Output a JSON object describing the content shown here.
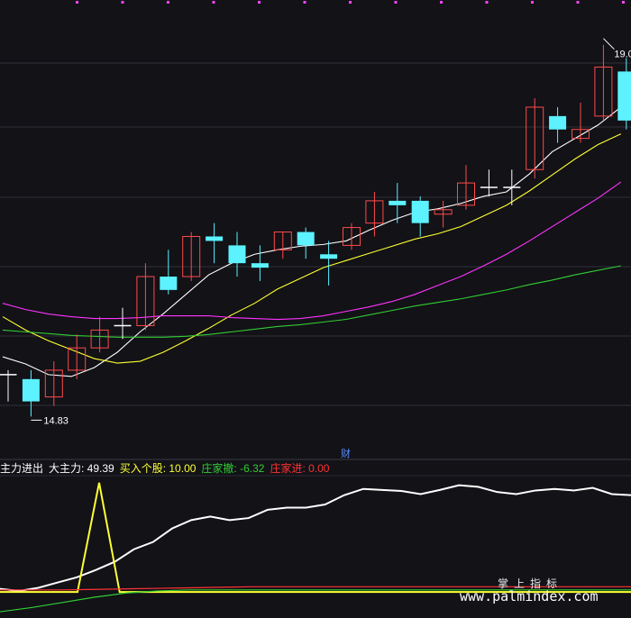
{
  "colors": {
    "background": "#121217",
    "up": "#ff4a4a",
    "down": "#5cf2ff",
    "ma_white": "#ffffff",
    "ma_yellow": "#ffff33",
    "ma_magenta": "#ff33ff",
    "ma_green": "#33cc33",
    "grid": "#30303a"
  },
  "chart_data": [
    {
      "type": "candlestick",
      "title": "",
      "annotations": {
        "low_label": "14.83",
        "high_label": "19.0"
      },
      "candles": [
        {
          "o": 15.3,
          "h": 15.35,
          "l": 15.0,
          "c": 15.3
        },
        {
          "o": 15.25,
          "h": 15.35,
          "l": 14.83,
          "c": 15.0
        },
        {
          "o": 15.05,
          "h": 15.45,
          "l": 14.95,
          "c": 15.35
        },
        {
          "o": 15.35,
          "h": 15.75,
          "l": 15.25,
          "c": 15.6
        },
        {
          "o": 15.6,
          "h": 15.95,
          "l": 15.55,
          "c": 15.8
        },
        {
          "o": 15.85,
          "h": 16.05,
          "l": 15.7,
          "c": 15.85
        },
        {
          "o": 15.85,
          "h": 16.55,
          "l": 15.8,
          "c": 16.4
        },
        {
          "o": 16.4,
          "h": 16.7,
          "l": 16.2,
          "c": 16.25
        },
        {
          "o": 16.4,
          "h": 16.9,
          "l": 16.35,
          "c": 16.85
        },
        {
          "o": 16.85,
          "h": 17.0,
          "l": 16.55,
          "c": 16.8
        },
        {
          "o": 16.75,
          "h": 16.9,
          "l": 16.4,
          "c": 16.55
        },
        {
          "o": 16.55,
          "h": 16.75,
          "l": 16.35,
          "c": 16.5
        },
        {
          "o": 16.7,
          "h": 16.9,
          "l": 16.6,
          "c": 16.9
        },
        {
          "o": 16.9,
          "h": 16.95,
          "l": 16.6,
          "c": 16.75
        },
        {
          "o": 16.65,
          "h": 16.8,
          "l": 16.3,
          "c": 16.6
        },
        {
          "o": 16.75,
          "h": 17.0,
          "l": 16.7,
          "c": 16.95
        },
        {
          "o": 17.0,
          "h": 17.35,
          "l": 16.85,
          "c": 17.25
        },
        {
          "o": 17.25,
          "h": 17.45,
          "l": 17.0,
          "c": 17.2
        },
        {
          "o": 17.25,
          "h": 17.3,
          "l": 16.85,
          "c": 17.0
        },
        {
          "o": 17.1,
          "h": 17.25,
          "l": 16.95,
          "c": 17.15
        },
        {
          "o": 17.2,
          "h": 17.65,
          "l": 17.15,
          "c": 17.45
        },
        {
          "o": 17.4,
          "h": 17.6,
          "l": 17.3,
          "c": 17.4
        },
        {
          "o": 17.4,
          "h": 17.6,
          "l": 17.2,
          "c": 17.4
        },
        {
          "o": 17.6,
          "h": 18.4,
          "l": 17.5,
          "c": 18.3
        },
        {
          "o": 18.2,
          "h": 18.3,
          "l": 17.9,
          "c": 18.05
        },
        {
          "o": 17.95,
          "h": 18.35,
          "l": 17.9,
          "c": 18.05
        },
        {
          "o": 18.2,
          "h": 19.0,
          "l": 18.15,
          "c": 18.75
        },
        {
          "o": 18.7,
          "h": 18.85,
          "l": 18.05,
          "c": 18.15
        }
      ],
      "ma": [
        {
          "color": "#ffffff",
          "values": [
            15.5,
            15.42,
            15.3,
            15.28,
            15.38,
            15.55,
            15.78,
            15.98,
            16.2,
            16.42,
            16.55,
            16.65,
            16.7,
            16.74,
            16.76,
            16.8,
            16.92,
            17.03,
            17.12,
            17.16,
            17.22,
            17.3,
            17.35,
            17.55,
            17.8,
            17.95,
            18.1,
            18.3
          ]
        },
        {
          "color": "#ffff33",
          "values": [
            15.95,
            15.8,
            15.68,
            15.58,
            15.48,
            15.43,
            15.45,
            15.55,
            15.68,
            15.82,
            15.97,
            16.1,
            16.26,
            16.38,
            16.5,
            16.58,
            16.66,
            16.74,
            16.82,
            16.88,
            16.96,
            17.08,
            17.2,
            17.36,
            17.54,
            17.72,
            17.88,
            18.0
          ]
        },
        {
          "color": "#ff33ff",
          "values": [
            16.1,
            16.03,
            15.98,
            15.95,
            15.93,
            15.93,
            15.94,
            15.96,
            15.96,
            15.96,
            15.94,
            15.93,
            15.92,
            15.93,
            15.96,
            16.01,
            16.06,
            16.12,
            16.2,
            16.3,
            16.4,
            16.52,
            16.65,
            16.8,
            16.96,
            17.12,
            17.28,
            17.46
          ]
        },
        {
          "color": "#33cc33",
          "values": [
            15.8,
            15.78,
            15.76,
            15.74,
            15.73,
            15.72,
            15.72,
            15.72,
            15.73,
            15.75,
            15.78,
            15.81,
            15.84,
            15.86,
            15.89,
            15.92,
            15.97,
            16.02,
            16.07,
            16.11,
            16.15,
            16.2,
            16.25,
            16.31,
            16.36,
            16.42,
            16.47,
            16.52
          ]
        }
      ]
    },
    {
      "type": "line",
      "title": "",
      "series": [
        {
          "name": "大主力",
          "color": "#ffffff",
          "values": [
            -4,
            -8,
            -2,
            8,
            18,
            32,
            48,
            72,
            86,
            112,
            128,
            135,
            128,
            132,
            148,
            152,
            152,
            158,
            176,
            188,
            186,
            184,
            178,
            186,
            195,
            192,
            182,
            178,
            185,
            188,
            185,
            190,
            178,
            176
          ]
        },
        {
          "name": "买入个股",
          "color": "#ffff33",
          "values": [
            0,
            0,
            0,
            200,
            0,
            0,
            0,
            0,
            0,
            0,
            0,
            0,
            0,
            0,
            0,
            0,
            0,
            0,
            0,
            0,
            0,
            0,
            0,
            0,
            0,
            0,
            0,
            0,
            0,
            0
          ]
        },
        {
          "name": "庄家撤",
          "color": "#33cc33",
          "values": [
            -48,
            -40,
            -30,
            -20,
            -12,
            -8,
            -6,
            -6,
            -6,
            -6,
            -6,
            -6,
            -6,
            -6,
            -6,
            -6,
            -6,
            -6,
            -6,
            -6,
            -6
          ]
        },
        {
          "name": "庄家进",
          "color": "#ff3333",
          "values": [
            -6,
            -6,
            -6,
            -5,
            -4,
            -3,
            -2,
            -1,
            0,
            0,
            0,
            0,
            0,
            0,
            0,
            0,
            0,
            0,
            0,
            0,
            0
          ]
        }
      ]
    }
  ],
  "indicator_legend": {
    "name": "主力进出",
    "items": [
      {
        "label": "大主力: 49.39",
        "color": "#ffffff"
      },
      {
        "label": "买入个股: 10.00",
        "color": "#ffff33"
      },
      {
        "label": "庄家撤: -6.32",
        "color": "#33cc33"
      },
      {
        "label": "庄家进: 0.00",
        "color": "#ff3333"
      }
    ]
  },
  "marker_cai": "财",
  "watermark": {
    "line1": "掌上指标",
    "line2": "www.palmindex.com"
  }
}
